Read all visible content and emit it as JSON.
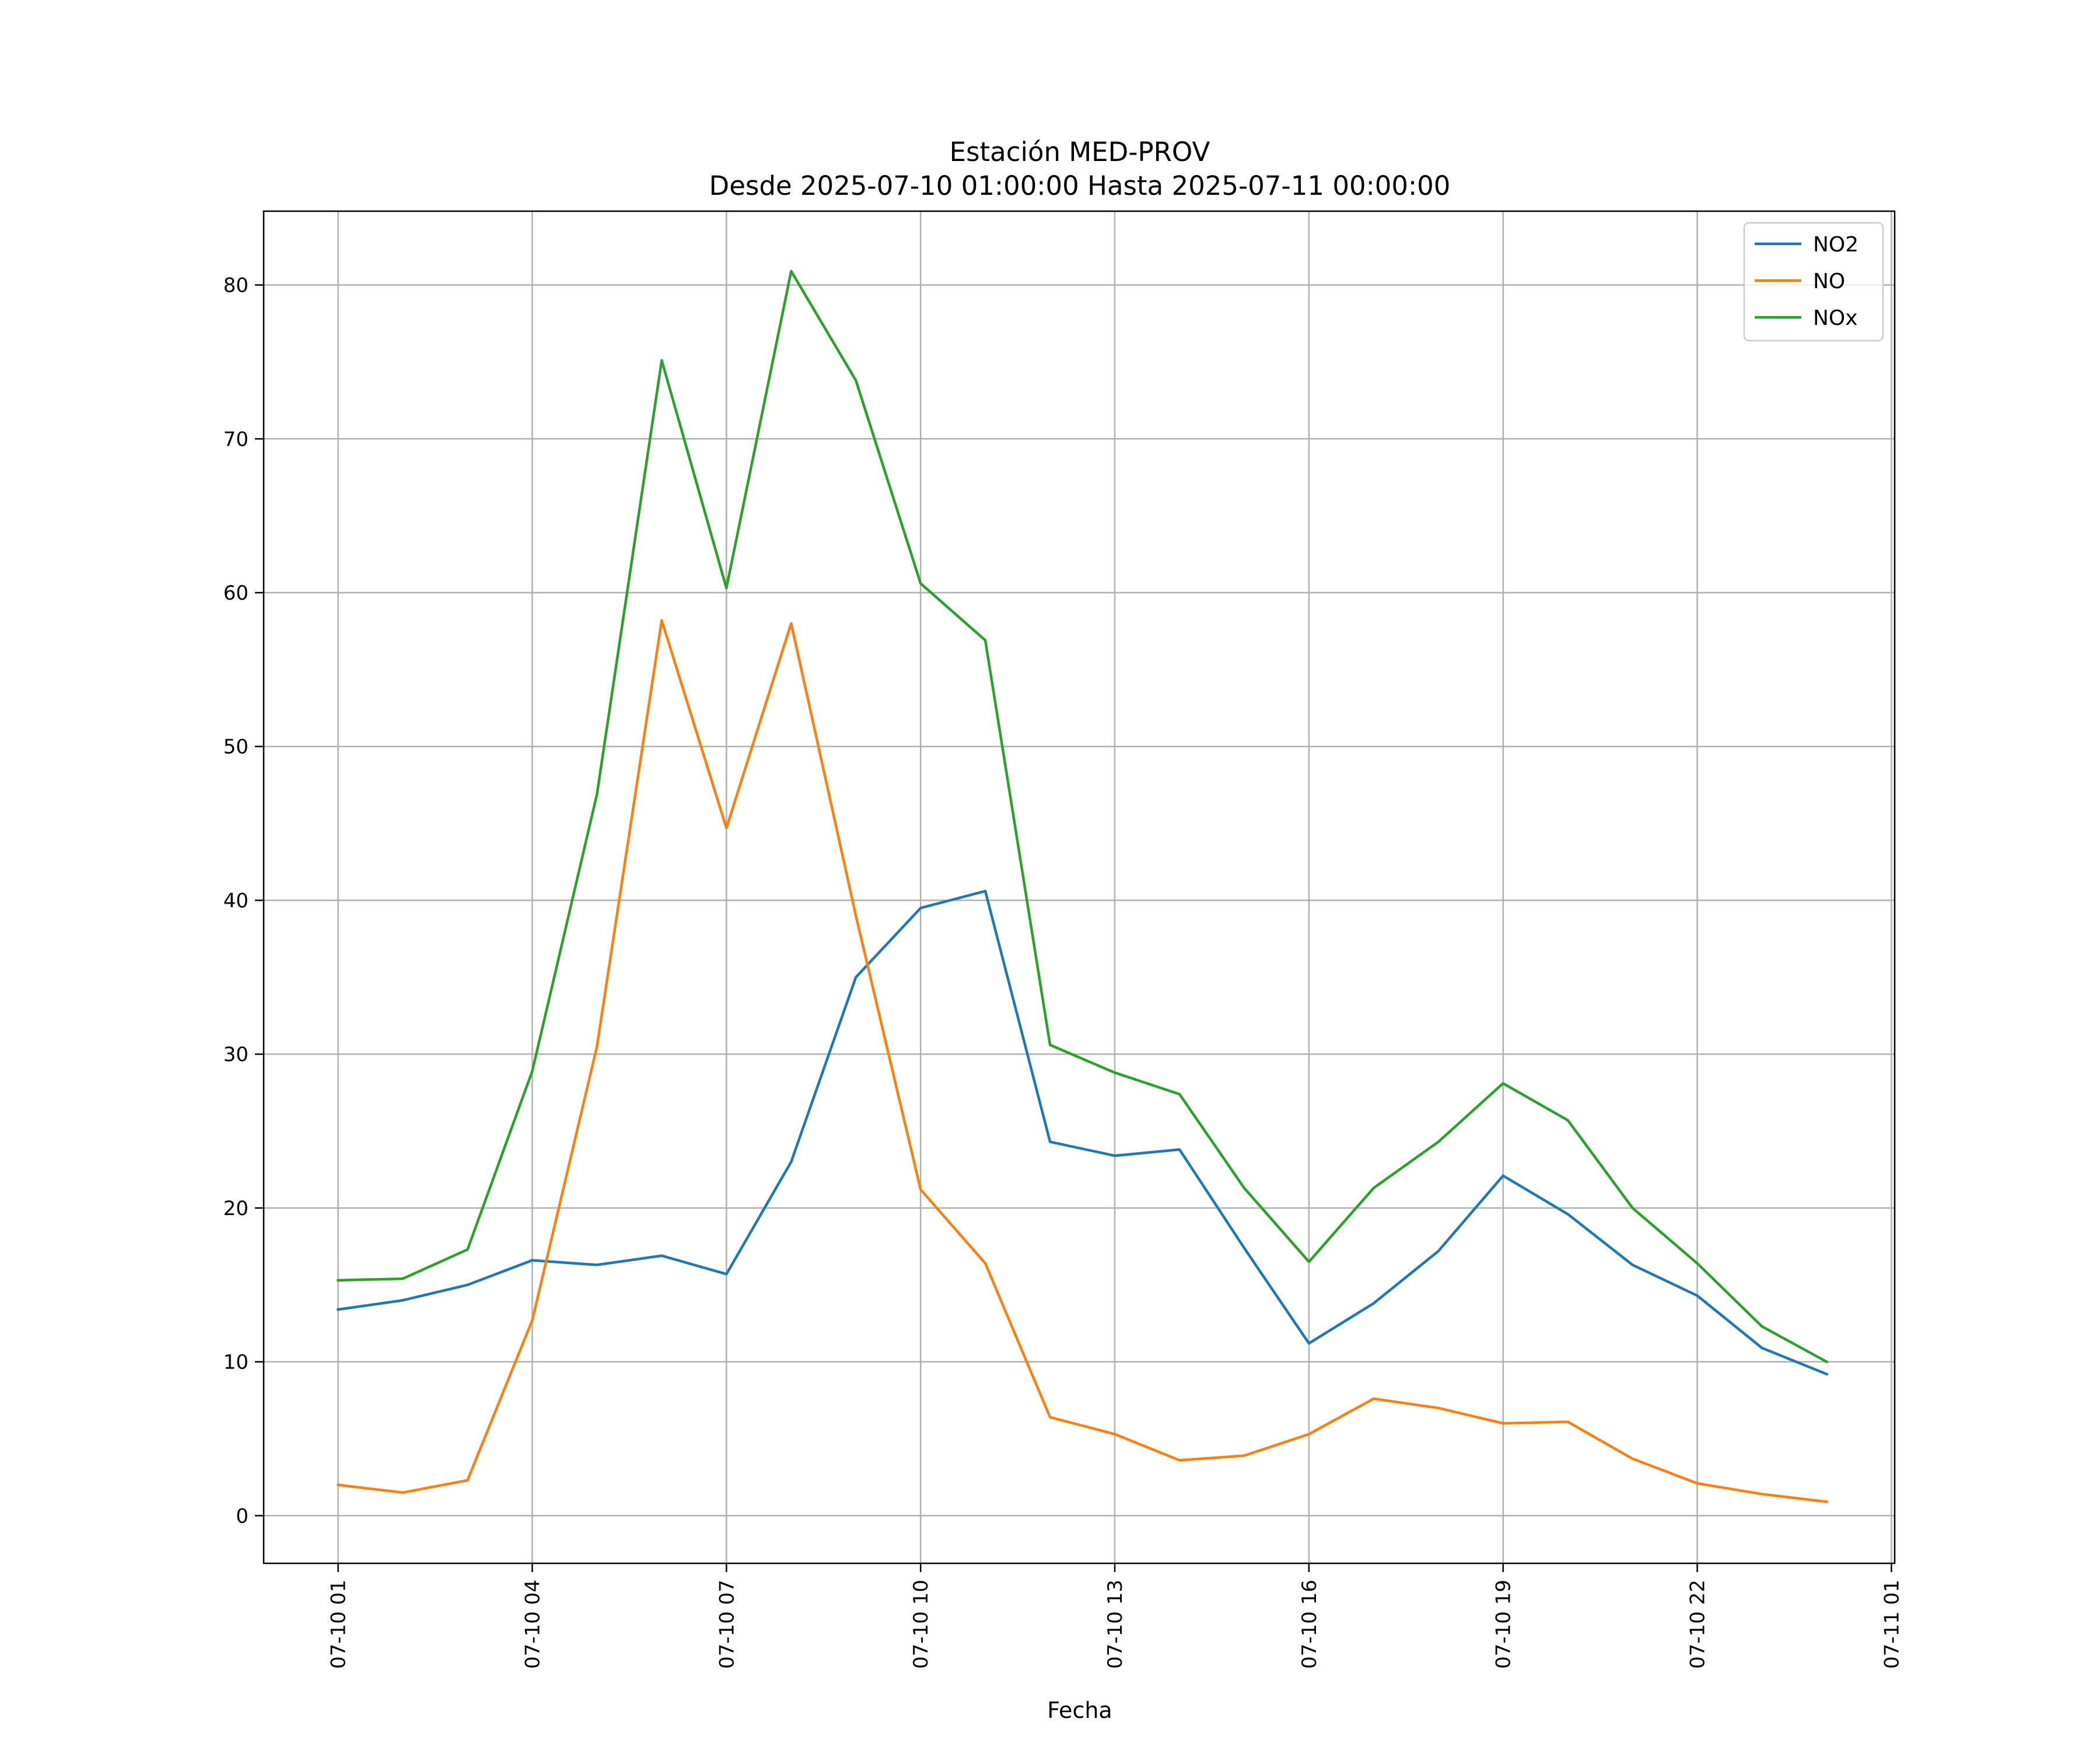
{
  "chart_data": {
    "type": "line",
    "title": "Estación MED-PROV",
    "subtitle": "Desde 2025-07-10 01:00:00 Hasta 2025-07-11 00:00:00",
    "xlabel": "Fecha",
    "ylabel": "",
    "x": [
      "2025-07-10 01:00",
      "2025-07-10 02:00",
      "2025-07-10 03:00",
      "2025-07-10 04:00",
      "2025-07-10 05:00",
      "2025-07-10 06:00",
      "2025-07-10 07:00",
      "2025-07-10 08:00",
      "2025-07-10 09:00",
      "2025-07-10 10:00",
      "2025-07-10 11:00",
      "2025-07-10 12:00",
      "2025-07-10 13:00",
      "2025-07-10 14:00",
      "2025-07-10 15:00",
      "2025-07-10 16:00",
      "2025-07-10 17:00",
      "2025-07-10 18:00",
      "2025-07-10 19:00",
      "2025-07-10 20:00",
      "2025-07-10 21:00",
      "2025-07-10 22:00",
      "2025-07-10 23:00",
      "2025-07-11 00:00"
    ],
    "series": [
      {
        "name": "NO2",
        "color": "#1f77b4",
        "values": [
          13.4,
          14.0,
          15.0,
          16.6,
          16.3,
          16.9,
          15.7,
          23.0,
          35.0,
          39.5,
          40.6,
          24.3,
          23.4,
          23.8,
          17.4,
          11.2,
          13.8,
          17.2,
          22.1,
          19.6,
          16.3,
          14.3,
          10.9,
          9.2
        ]
      },
      {
        "name": "NO",
        "color": "#ff7f0e",
        "values": [
          2.0,
          1.5,
          2.3,
          12.7,
          30.5,
          58.2,
          44.7,
          58.0,
          39.0,
          21.2,
          16.4,
          6.4,
          5.3,
          3.6,
          3.9,
          5.3,
          7.6,
          7.0,
          6.0,
          6.1,
          3.7,
          2.1,
          1.4,
          0.9
        ]
      },
      {
        "name": "NOx",
        "color": "#2ca02c",
        "values": [
          15.3,
          15.4,
          17.3,
          28.9,
          46.9,
          75.1,
          60.3,
          80.9,
          73.8,
          60.6,
          56.9,
          30.6,
          28.8,
          27.4,
          21.3,
          16.5,
          21.3,
          24.3,
          28.1,
          25.7,
          20.0,
          16.4,
          12.3,
          10.0
        ]
      }
    ],
    "xticks": [
      "07-10 01",
      "07-10 04",
      "07-10 07",
      "07-10 10",
      "07-10 13",
      "07-10 16",
      "07-10 19",
      "07-10 22",
      "07-11 01"
    ],
    "yticks": [
      "0",
      "10",
      "20",
      "30",
      "40",
      "50",
      "60",
      "70",
      "80"
    ],
    "xlim_hours": [
      -1.15,
      24.05
    ],
    "ylim": [
      -3.1,
      84.8
    ],
    "grid": true,
    "legend": "top-right"
  }
}
